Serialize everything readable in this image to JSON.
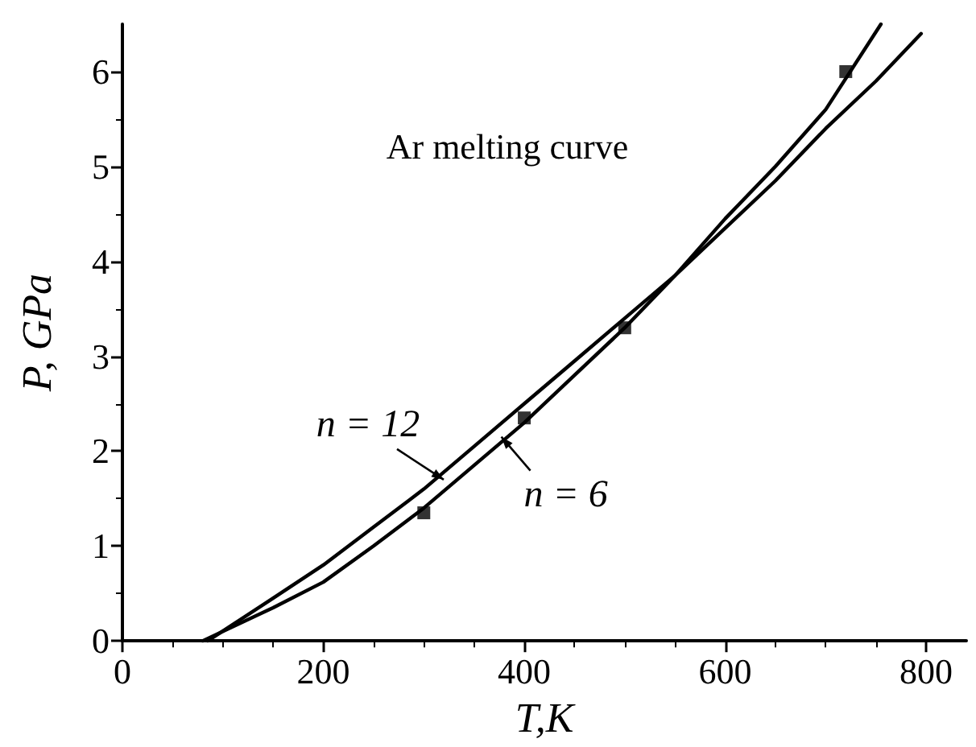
{
  "chart_data": {
    "type": "line",
    "title": "Ar melting curve",
    "xlabel": "T,K",
    "ylabel": "P, GPa",
    "xlim": [
      0,
      840
    ],
    "xticks": [
      0,
      200,
      400,
      600,
      800
    ],
    "ylim": [
      0,
      6.5
    ],
    "yticks": [
      0,
      1,
      2,
      3,
      4,
      5,
      6
    ],
    "grid": false,
    "line_style": "solid",
    "annotations": [
      {
        "text": "n = 12",
        "x": 315,
        "y": 1.75
      },
      {
        "text": "n = 6",
        "x": 382,
        "y": 2.1
      }
    ],
    "series": [
      {
        "color": "#000000",
        "x": [
          85,
          150,
          200,
          250,
          300,
          350,
          400,
          450,
          500,
          550,
          600,
          650,
          700,
          750,
          795
        ],
        "values": [
          0,
          0.45,
          0.8,
          1.2,
          1.6,
          2.05,
          2.5,
          2.95,
          3.4,
          3.85,
          4.35,
          4.85,
          5.4,
          5.9,
          6.4
        ]
      },
      {
        "color": "#000000",
        "x": [
          80,
          150,
          200,
          250,
          300,
          350,
          400,
          450,
          500,
          550,
          600,
          650,
          700,
          755
        ],
        "values": [
          0,
          0.35,
          0.62,
          1.0,
          1.4,
          1.85,
          2.3,
          2.8,
          3.3,
          3.85,
          4.45,
          5.0,
          5.6,
          6.5
        ]
      },
      {
        "type": "scatter",
        "marker": "square",
        "color": "#000000",
        "x": [
          300,
          400,
          500,
          720
        ],
        "values": [
          1.35,
          2.35,
          3.3,
          6.0
        ]
      }
    ]
  }
}
